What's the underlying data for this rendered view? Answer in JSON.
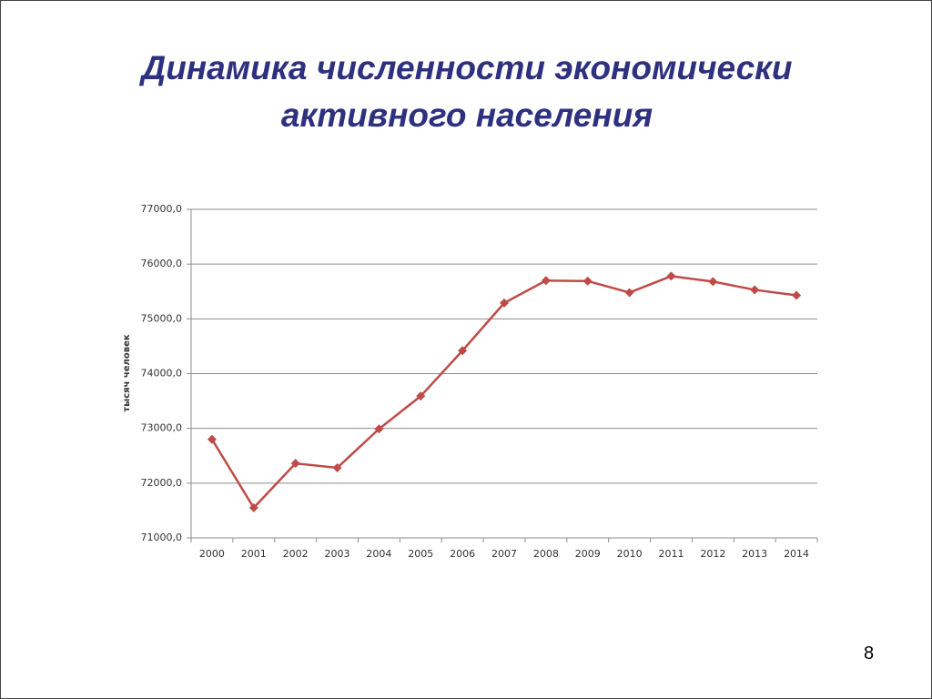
{
  "chart_data": {
    "type": "line",
    "title": "Динамика численности экономически активного населения",
    "y_label": "тысяч человек",
    "categories": [
      "2000",
      "2001",
      "2002",
      "2003",
      "2004",
      "2005",
      "2006",
      "2007",
      "2008",
      "2009",
      "2010",
      "2011",
      "2012",
      "2013",
      "2014"
    ],
    "series": [
      {
        "name": "тысяч человек",
        "color": "#be4b48",
        "values": [
          72800,
          71550,
          72360,
          72280,
          72990,
          73590,
          74420,
          75290,
          75700,
          75690,
          75480,
          75780,
          75680,
          75530,
          75430
        ]
      }
    ],
    "ylim": [
      71000,
      77000
    ],
    "yticks": [
      {
        "value": 71000,
        "label": "71000,0"
      },
      {
        "value": 72000,
        "label": "72000,0"
      },
      {
        "value": 73000,
        "label": "73000,0"
      },
      {
        "value": 74000,
        "label": "74000,0"
      },
      {
        "value": 75000,
        "label": "75000,0"
      },
      {
        "value": 76000,
        "label": "76000,0"
      },
      {
        "value": 77000,
        "label": "77000,0"
      }
    ],
    "grid": true
  },
  "slide": {
    "page_number": "8"
  }
}
